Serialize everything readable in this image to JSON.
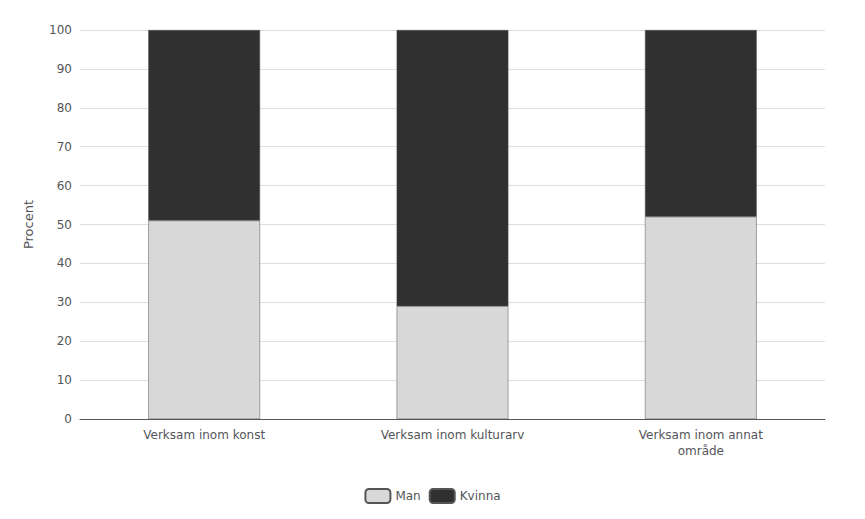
{
  "chart_data": {
    "type": "bar",
    "categories": [
      "Verksam inom konst",
      "Verksam inom kulturarv",
      "Verksam inom annat\nområde"
    ],
    "series": [
      {
        "name": "Man",
        "color": "#d8d8d8",
        "values": [
          51,
          29,
          52
        ]
      },
      {
        "name": "Kvinna",
        "color": "#303030",
        "values": [
          49,
          71,
          48
        ]
      }
    ],
    "ylabel": "Procent",
    "ylim": [
      0,
      100
    ],
    "yticks": [
      0,
      10,
      20,
      30,
      40,
      50,
      60,
      70,
      80,
      90,
      100
    ],
    "stacked": true,
    "grid": true,
    "legend": "bottom"
  }
}
